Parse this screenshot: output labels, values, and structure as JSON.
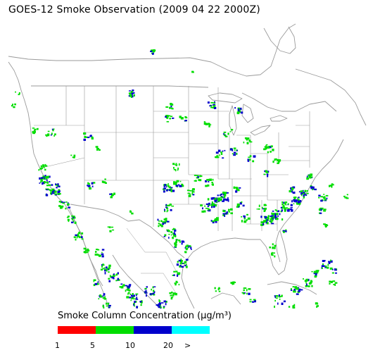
{
  "title": "GOES-12 Smoke Observation (2009 04 22  2000Z)",
  "legend": {
    "title": "Smoke Column Concentration (μg/m³)",
    "bins": [
      {
        "color": "#ff0000",
        "label": "1"
      },
      {
        "color": "#00dd00",
        "label": "5"
      },
      {
        "color": "#0000cc",
        "label": "10"
      },
      {
        "color": "#00ffff",
        "label": "20"
      }
    ],
    "overflow_label": ">"
  },
  "colors": {
    "boundary": "#9a9a9a",
    "background": "#ffffff"
  }
}
